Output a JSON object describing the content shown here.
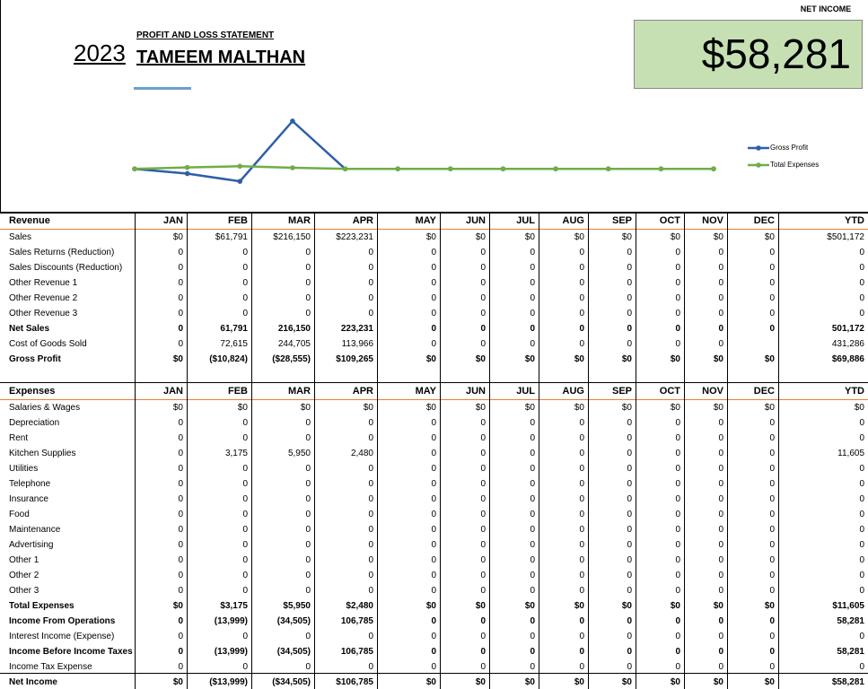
{
  "header": {
    "year": "2023",
    "subtitle": "PROFIT AND LOSS STATEMENT",
    "name": "TAMEEM MALTHAN"
  },
  "net_income": {
    "label": "NET INCOME",
    "value": "$58,281"
  },
  "chart_data": {
    "type": "line",
    "ylim": [
      -55000,
      140000
    ],
    "series": [
      {
        "name": "Gross Profit",
        "color": "#2e5fa8",
        "values": [
          0,
          -10824,
          -28555,
          109265,
          0,
          0,
          0,
          0,
          0,
          0,
          0,
          0
        ]
      },
      {
        "name": "Total Expenses",
        "color": "#70ad47",
        "values": [
          0,
          3175,
          5950,
          2480,
          0,
          0,
          0,
          0,
          0,
          0,
          0,
          0
        ]
      }
    ]
  },
  "revenue": {
    "columns": [
      "Revenue",
      "JAN",
      "FEB",
      "MAR",
      "APR",
      "MAY",
      "JUN",
      "JUL",
      "AUG",
      "SEP",
      "OCT",
      "NOV",
      "DEC",
      "YTD"
    ],
    "bold_rows": [
      6,
      8
    ],
    "rows": [
      [
        "Sales",
        "$0",
        "$61,791",
        "$216,150",
        "$223,231",
        "$0",
        "$0",
        "$0",
        "$0",
        "$0",
        "$0",
        "$0",
        "$0",
        "$501,172"
      ],
      [
        "Sales Returns (Reduction)",
        "0",
        "0",
        "0",
        "0",
        "0",
        "0",
        "0",
        "0",
        "0",
        "0",
        "0",
        "0",
        "0"
      ],
      [
        "Sales Discounts (Reduction)",
        "0",
        "0",
        "0",
        "0",
        "0",
        "0",
        "0",
        "0",
        "0",
        "0",
        "0",
        "0",
        "0"
      ],
      [
        "Other Revenue 1",
        "0",
        "0",
        "0",
        "0",
        "0",
        "0",
        "0",
        "0",
        "0",
        "0",
        "0",
        "0",
        "0"
      ],
      [
        "Other Revenue 2",
        "0",
        "0",
        "0",
        "0",
        "0",
        "0",
        "0",
        "0",
        "0",
        "0",
        "0",
        "0",
        "0"
      ],
      [
        "Other Revenue 3",
        "0",
        "0",
        "0",
        "0",
        "0",
        "0",
        "0",
        "0",
        "0",
        "0",
        "0",
        "0",
        "0"
      ],
      [
        "Net Sales",
        "0",
        "61,791",
        "216,150",
        "223,231",
        "0",
        "0",
        "0",
        "0",
        "0",
        "0",
        "0",
        "0",
        "501,172"
      ],
      [
        "Cost of Goods Sold",
        "0",
        "72,615",
        "244,705",
        "113,966",
        "0",
        "0",
        "0",
        "0",
        "0",
        "0",
        "0",
        null,
        "431,286"
      ],
      [
        "Gross Profit",
        "$0",
        "($10,824)",
        "($28,555)",
        "$109,265",
        "$0",
        "$0",
        "$0",
        "$0",
        "$0",
        "$0",
        "$0",
        "$0",
        "$69,886"
      ]
    ]
  },
  "expenses": {
    "columns": [
      "Expenses",
      "JAN",
      "FEB",
      "MAR",
      "APR",
      "MAY",
      "JUN",
      "JUL",
      "AUG",
      "SEP",
      "OCT",
      "NOV",
      "DEC",
      "YTD"
    ],
    "bold_rows": [
      13,
      14,
      16,
      18
    ],
    "rows": [
      [
        "Salaries & Wages",
        "$0",
        "$0",
        "$0",
        "$0",
        "$0",
        "$0",
        "$0",
        "$0",
        "$0",
        "$0",
        "$0",
        "$0",
        "$0"
      ],
      [
        "Depreciation",
        "0",
        "0",
        "0",
        "0",
        "0",
        "0",
        "0",
        "0",
        "0",
        "0",
        "0",
        "0",
        "0"
      ],
      [
        "Rent",
        "0",
        "0",
        "0",
        "0",
        "0",
        "0",
        "0",
        "0",
        "0",
        "0",
        "0",
        "0",
        "0"
      ],
      [
        "Kitchen Supplies",
        "0",
        "3,175",
        "5,950",
        "2,480",
        "0",
        "0",
        "0",
        "0",
        "0",
        "0",
        "0",
        "0",
        "11,605"
      ],
      [
        "Utilities",
        "0",
        "0",
        "0",
        "0",
        "0",
        "0",
        "0",
        "0",
        "0",
        "0",
        "0",
        "0",
        "0"
      ],
      [
        "Telephone",
        "0",
        "0",
        "0",
        "0",
        "0",
        "0",
        "0",
        "0",
        "0",
        "0",
        "0",
        "0",
        "0"
      ],
      [
        "Insurance",
        "0",
        "0",
        "0",
        "0",
        "0",
        "0",
        "0",
        "0",
        "0",
        "0",
        "0",
        "0",
        "0"
      ],
      [
        "Food",
        "0",
        "0",
        "0",
        "0",
        "0",
        "0",
        "0",
        "0",
        "0",
        "0",
        "0",
        "0",
        "0"
      ],
      [
        "Maintenance",
        "0",
        "0",
        "0",
        "0",
        "0",
        "0",
        "0",
        "0",
        "0",
        "0",
        "0",
        "0",
        "0"
      ],
      [
        "Advertising",
        "0",
        "0",
        "0",
        "0",
        "0",
        "0",
        "0",
        "0",
        "0",
        "0",
        "0",
        "0",
        "0"
      ],
      [
        "Other 1",
        "0",
        "0",
        "0",
        "0",
        "0",
        "0",
        "0",
        "0",
        "0",
        "0",
        "0",
        "0",
        "0"
      ],
      [
        "Other 2",
        "0",
        "0",
        "0",
        "0",
        "0",
        "0",
        "0",
        "0",
        "0",
        "0",
        "0",
        "0",
        "0"
      ],
      [
        "Other 3",
        "0",
        "0",
        "0",
        "0",
        "0",
        "0",
        "0",
        "0",
        "0",
        "0",
        "0",
        "0",
        "0"
      ],
      [
        "Total Expenses",
        "$0",
        "$3,175",
        "$5,950",
        "$2,480",
        "$0",
        "$0",
        "$0",
        "$0",
        "$0",
        "$0",
        "$0",
        "$0",
        "$11,605"
      ],
      [
        "Income From Operations",
        "0",
        "(13,999)",
        "(34,505)",
        "106,785",
        "0",
        "0",
        "0",
        "0",
        "0",
        "0",
        "0",
        "0",
        "58,281"
      ],
      [
        "Interest Income (Expense)",
        "0",
        "0",
        "0",
        "0",
        "0",
        "0",
        "0",
        "0",
        "0",
        "0",
        "0",
        "0",
        "0"
      ],
      [
        "Income Before Income Taxes",
        "0",
        "(13,999)",
        "(34,505)",
        "106,785",
        "0",
        "0",
        "0",
        "0",
        "0",
        "0",
        "0",
        "0",
        "58,281"
      ],
      [
        "Income Tax Expense",
        "0",
        "0",
        "0",
        "0",
        "0",
        "0",
        "0",
        "0",
        "0",
        "0",
        "0",
        "0",
        "0"
      ],
      [
        "Net Income",
        "$0",
        "($13,999)",
        "($34,505)",
        "$106,785",
        "$0",
        "$0",
        "$0",
        "$0",
        "$0",
        "$0",
        "$0",
        "$0",
        "$58,281"
      ]
    ]
  }
}
